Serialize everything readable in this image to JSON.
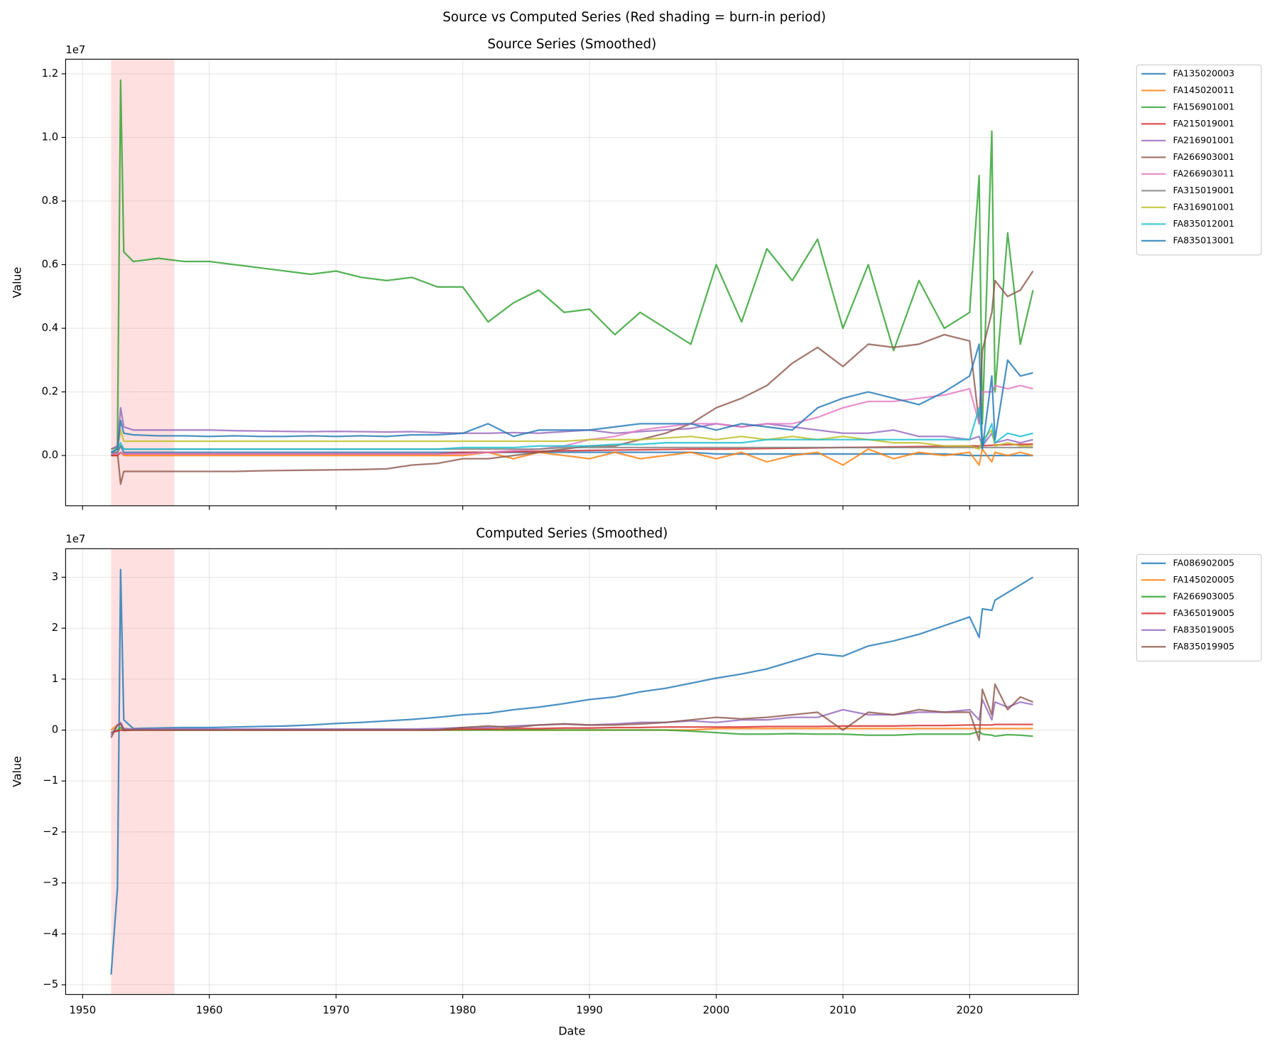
{
  "title": "Source vs Computed Series (Red shading = burn-in period)",
  "chart_data": [
    {
      "type": "line",
      "title": "Source Series (Smoothed)",
      "ylabel": "Value",
      "offset_label": "1e7",
      "xlim": [
        1948.66,
        2028.57
      ],
      "xticks": [
        1950,
        1960,
        1970,
        1980,
        1990,
        2000,
        2010,
        2020
      ],
      "xticklabels": false,
      "ylim": [
        -0.158,
        1.246
      ],
      "yticks": [
        {
          "value": 0,
          "label": "0.0"
        },
        0.2,
        0.4,
        0.6,
        0.8,
        {
          "value": 1,
          "label": "1.0"
        },
        1.2
      ],
      "grid": true,
      "shade": {
        "x": [
          1952.25,
          1957.25
        ],
        "color": "#ffcccc"
      },
      "x": [
        1952.25,
        1952.75,
        1953,
        1953.25,
        1954,
        1956,
        1958,
        1960,
        1962,
        1964,
        1966,
        1968,
        1970,
        1972,
        1974,
        1976,
        1978,
        1980,
        1982,
        1984,
        1986,
        1988,
        1990,
        1992,
        1994,
        1996,
        1998,
        2000,
        2002,
        2004,
        2006,
        2008,
        2010,
        2012,
        2014,
        2016,
        2018,
        2020,
        2020.75,
        2021,
        2021.75,
        2022,
        2023,
        2024,
        2025
      ],
      "series": [
        {
          "name": "FA135020003",
          "color": "#1f77b4",
          "values": [
            0.005,
            0.01,
            0.03,
            0.01,
            0.01,
            0.01,
            0.01,
            0.01,
            0.01,
            0.01,
            0.01,
            0.01,
            0.01,
            0.01,
            0.01,
            0.01,
            0.01,
            0.01,
            0.01,
            0.01,
            0.01,
            0.01,
            0.01,
            0.01,
            0.01,
            0.01,
            0.01,
            0.005,
            0.005,
            0.005,
            0.005,
            0.005,
            0.005,
            0.005,
            0.005,
            0.005,
            0.005,
            0,
            0,
            0,
            0,
            0,
            0,
            0,
            0
          ]
        },
        {
          "name": "FA145020011",
          "color": "#ff7f0e",
          "values": [
            0,
            0,
            0.01,
            0,
            0,
            0,
            0,
            0,
            0,
            0,
            0,
            0,
            0,
            0,
            0,
            0,
            0,
            0,
            0.01,
            -0.01,
            0.01,
            0,
            -0.01,
            0.01,
            -0.01,
            0,
            0.01,
            -0.01,
            0.01,
            -0.02,
            0,
            0.01,
            -0.03,
            0.02,
            -0.01,
            0.01,
            0,
            0.01,
            -0.03,
            0.02,
            -0.02,
            0.01,
            0,
            0.01,
            0
          ]
        },
        {
          "name": "FA156901001",
          "color": "#2ca02c",
          "values": [
            0.02,
            0.025,
            1.18,
            0.64,
            0.61,
            0.62,
            0.61,
            0.61,
            0.6,
            0.59,
            0.58,
            0.57,
            0.58,
            0.56,
            0.55,
            0.56,
            0.53,
            0.53,
            0.42,
            0.48,
            0.52,
            0.45,
            0.46,
            0.38,
            0.45,
            0.4,
            0.35,
            0.6,
            0.42,
            0.65,
            0.55,
            0.68,
            0.4,
            0.6,
            0.33,
            0.55,
            0.4,
            0.45,
            0.88,
            0.1,
            1.02,
            0.2,
            0.7,
            0.35,
            0.52
          ]
        },
        {
          "name": "FA215019001",
          "color": "#d62728",
          "values": [
            0,
            0,
            0.01,
            0.005,
            0.005,
            0.005,
            0.005,
            0.005,
            0.005,
            0.005,
            0.005,
            0.005,
            0.005,
            0.005,
            0.005,
            0.005,
            0.005,
            0.01,
            0.01,
            0.012,
            0.013,
            0.015,
            0.016,
            0.017,
            0.018,
            0.019,
            0.02,
            0.02,
            0.021,
            0.022,
            0.023,
            0.024,
            0.025,
            0.026,
            0.027,
            0.028,
            0.029,
            0.03,
            0.03,
            0.031,
            0.032,
            0.033,
            0.034,
            0.035,
            0.036
          ]
        },
        {
          "name": "FA216901001",
          "color": "#9467bd",
          "values": [
            0.02,
            0.03,
            0.15,
            0.09,
            0.08,
            0.08,
            0.08,
            0.08,
            0.078,
            0.077,
            0.076,
            0.075,
            0.076,
            0.075,
            0.074,
            0.075,
            0.072,
            0.07,
            0.07,
            0.072,
            0.07,
            0.075,
            0.08,
            0.07,
            0.075,
            0.08,
            0.085,
            0.1,
            0.09,
            0.1,
            0.09,
            0.08,
            0.07,
            0.07,
            0.08,
            0.06,
            0.06,
            0.05,
            0.06,
            0.03,
            0.07,
            0.04,
            0.05,
            0.04,
            0.05
          ]
        },
        {
          "name": "FA266903001",
          "color": "#8c564b",
          "values": [
            0,
            0.01,
            -0.09,
            -0.05,
            -0.05,
            -0.05,
            -0.05,
            -0.05,
            -0.05,
            -0.048,
            -0.047,
            -0.046,
            -0.045,
            -0.044,
            -0.042,
            -0.03,
            -0.025,
            -0.01,
            -0.01,
            0,
            0.01,
            0.02,
            0.03,
            0.03,
            0.05,
            0.07,
            0.1,
            0.15,
            0.18,
            0.22,
            0.29,
            0.34,
            0.28,
            0.35,
            0.34,
            0.35,
            0.38,
            0.36,
            0.1,
            0.33,
            0.45,
            0.55,
            0.5,
            0.52,
            0.58
          ]
        },
        {
          "name": "FA266903011",
          "color": "#e377c2",
          "values": [
            0.005,
            0.005,
            0.01,
            0.005,
            0.005,
            0.005,
            0.005,
            0.005,
            0.005,
            0.005,
            0.005,
            0.005,
            0.005,
            0.005,
            0.005,
            0.005,
            0.005,
            0.005,
            0.01,
            0.015,
            0.02,
            0.03,
            0.05,
            0.06,
            0.08,
            0.09,
            0.1,
            0.1,
            0.09,
            0.1,
            0.1,
            0.12,
            0.15,
            0.17,
            0.17,
            0.18,
            0.19,
            0.21,
            0.1,
            0.2,
            0.2,
            0.22,
            0.21,
            0.22,
            0.21
          ]
        },
        {
          "name": "FA315019001",
          "color": "#7f7f7f",
          "values": [
            0.01,
            0.01,
            0.03,
            0.02,
            0.02,
            0.02,
            0.02,
            0.02,
            0.02,
            0.02,
            0.02,
            0.02,
            0.02,
            0.02,
            0.02,
            0.02,
            0.02,
            0.02,
            0.02,
            0.02,
            0.02,
            0.025,
            0.025,
            0.025,
            0.025,
            0.025,
            0.025,
            0.025,
            0.025,
            0.025,
            0.025,
            0.025,
            0.025,
            0.025,
            0.025,
            0.025,
            0.025,
            0.025,
            0.025,
            0.025,
            0.025,
            0.025,
            0.025,
            0.025,
            0.025
          ]
        },
        {
          "name": "FA316901001",
          "color": "#bcbd22",
          "values": [
            0.01,
            0.02,
            0.08,
            0.045,
            0.045,
            0.045,
            0.045,
            0.045,
            0.045,
            0.045,
            0.045,
            0.045,
            0.045,
            0.045,
            0.045,
            0.045,
            0.045,
            0.045,
            0.045,
            0.045,
            0.045,
            0.045,
            0.05,
            0.05,
            0.05,
            0.055,
            0.06,
            0.05,
            0.06,
            0.05,
            0.06,
            0.05,
            0.06,
            0.05,
            0.04,
            0.04,
            0.03,
            0.03,
            0.02,
            0.05,
            0.08,
            0.03,
            0.04,
            0.03,
            0.03
          ]
        },
        {
          "name": "FA835012001",
          "color": "#17becf",
          "values": [
            0.01,
            0.02,
            0.04,
            0.02,
            0.02,
            0.02,
            0.02,
            0.02,
            0.02,
            0.02,
            0.02,
            0.02,
            0.02,
            0.02,
            0.02,
            0.02,
            0.02,
            0.025,
            0.025,
            0.025,
            0.03,
            0.03,
            0.03,
            0.035,
            0.035,
            0.04,
            0.04,
            0.04,
            0.04,
            0.05,
            0.05,
            0.05,
            0.05,
            0.05,
            0.05,
            0.05,
            0.05,
            0.05,
            0.15,
            0.03,
            0.1,
            0.04,
            0.07,
            0.06,
            0.07
          ]
        },
        {
          "name": "FA835013001",
          "color": "#1f77b4",
          "values": [
            0.01,
            0.02,
            0.11,
            0.07,
            0.065,
            0.062,
            0.062,
            0.06,
            0.062,
            0.06,
            0.06,
            0.062,
            0.06,
            0.062,
            0.06,
            0.065,
            0.065,
            0.07,
            0.1,
            0.06,
            0.08,
            0.08,
            0.08,
            0.09,
            0.1,
            0.1,
            0.1,
            0.08,
            0.1,
            0.09,
            0.08,
            0.15,
            0.18,
            0.2,
            0.18,
            0.16,
            0.2,
            0.25,
            0.35,
            0.02,
            0.25,
            0.05,
            0.3,
            0.25,
            0.26
          ]
        }
      ]
    },
    {
      "type": "line",
      "title": "Computed Series (Smoothed)",
      "xlabel": "Date",
      "ylabel": "Value",
      "offset_label": "1e7",
      "xlim": [
        1948.66,
        2028.57
      ],
      "xticks": [
        1950,
        1960,
        1970,
        1980,
        1990,
        2000,
        2010,
        2020
      ],
      "xticklabels": true,
      "ylim": [
        -5.19,
        3.56
      ],
      "yticks": [
        {
          "value": -5,
          "label": "−5"
        },
        {
          "value": -4,
          "label": "−4"
        },
        {
          "value": -3,
          "label": "−3"
        },
        {
          "value": -2,
          "label": "−2"
        },
        {
          "value": -1,
          "label": "−1"
        },
        0,
        1,
        2,
        3
      ],
      "grid": true,
      "shade": {
        "x": [
          1952.25,
          1957.25
        ],
        "color": "#ffcccc"
      },
      "x": [
        1952.25,
        1952.75,
        1953,
        1953.25,
        1954,
        1956,
        1958,
        1960,
        1962,
        1964,
        1966,
        1968,
        1970,
        1972,
        1974,
        1976,
        1978,
        1980,
        1982,
        1984,
        1986,
        1988,
        1990,
        1992,
        1994,
        1996,
        1998,
        2000,
        2002,
        2004,
        2006,
        2008,
        2010,
        2012,
        2014,
        2016,
        2018,
        2020,
        2020.75,
        2021,
        2021.75,
        2022,
        2023,
        2024,
        2025
      ],
      "series": [
        {
          "name": "FA086902005",
          "color": "#1f77b4",
          "values": [
            -4.8,
            -3.1,
            3.15,
            0.2,
            0.03,
            0.04,
            0.05,
            0.05,
            0.06,
            0.07,
            0.08,
            0.1,
            0.13,
            0.15,
            0.18,
            0.21,
            0.25,
            0.3,
            0.33,
            0.4,
            0.45,
            0.52,
            0.6,
            0.65,
            0.75,
            0.82,
            0.92,
            1.02,
            1.1,
            1.2,
            1.35,
            1.5,
            1.45,
            1.65,
            1.75,
            1.88,
            2.05,
            2.22,
            1.82,
            2.38,
            2.35,
            2.55,
            2.7,
            2.85,
            3.0
          ]
        },
        {
          "name": "FA145020005",
          "color": "#ff7f0e",
          "values": [
            0,
            0.1,
            0.12,
            0.02,
            0,
            0,
            0,
            0,
            0,
            0,
            0,
            0,
            0,
            0,
            0,
            0,
            0,
            0,
            0,
            0,
            0,
            0,
            0,
            0,
            0,
            0,
            0,
            0.03,
            0.03,
            0.03,
            0.03,
            0.03,
            0.03,
            0.03,
            0.03,
            0.03,
            0.03,
            0.03,
            0.03,
            0.03,
            0.03,
            0.03,
            0.03,
            0.03,
            0.03
          ]
        },
        {
          "name": "FA266903005",
          "color": "#2ca02c",
          "values": [
            -0.05,
            0,
            0.05,
            0,
            0,
            0,
            0,
            0,
            0,
            0,
            0,
            0,
            0,
            0,
            0,
            0,
            0,
            0,
            0,
            0,
            0,
            0,
            0,
            0,
            0,
            0,
            -0.02,
            -0.05,
            -0.08,
            -0.08,
            -0.07,
            -0.08,
            -0.08,
            -0.1,
            -0.1,
            -0.08,
            -0.08,
            -0.08,
            -0.03,
            -0.08,
            -0.1,
            -0.12,
            -0.09,
            -0.1,
            -0.12
          ]
        },
        {
          "name": "FA365019005",
          "color": "#d62728",
          "values": [
            -0.05,
            -0.02,
            0,
            -0.01,
            0,
            0,
            0,
            0,
            0,
            0,
            0,
            0,
            0,
            0,
            0,
            0,
            0,
            0.02,
            0.02,
            0.03,
            0.03,
            0.04,
            0.04,
            0.05,
            0.05,
            0.06,
            0.06,
            0.06,
            0.06,
            0.07,
            0.07,
            0.07,
            0.08,
            0.08,
            0.08,
            0.09,
            0.09,
            0.1,
            0.1,
            0.1,
            0.1,
            0.11,
            0.11,
            0.11,
            0.11
          ]
        },
        {
          "name": "FA835019005",
          "color": "#9467bd",
          "values": [
            -0.1,
            0.1,
            0.15,
            0.03,
            0.02,
            0.02,
            0.02,
            0.02,
            0.02,
            0.02,
            0.02,
            0.02,
            0.02,
            0.02,
            0.02,
            0.02,
            0.03,
            0.05,
            0.05,
            0.08,
            0.1,
            0.12,
            0.1,
            0.12,
            0.15,
            0.15,
            0.18,
            0.15,
            0.2,
            0.2,
            0.25,
            0.25,
            0.4,
            0.3,
            0.3,
            0.35,
            0.35,
            0.4,
            0.2,
            0.6,
            0.2,
            0.55,
            0.45,
            0.55,
            0.5
          ]
        },
        {
          "name": "FA835019905",
          "color": "#8c564b",
          "values": [
            -0.15,
            0.1,
            0.12,
            0,
            0,
            0,
            0,
            0,
            0,
            0,
            0,
            0,
            0,
            0,
            0,
            0,
            0,
            0.05,
            0.08,
            0.05,
            0.1,
            0.12,
            0.1,
            0.1,
            0.12,
            0.15,
            0.2,
            0.25,
            0.22,
            0.25,
            0.3,
            0.35,
            0,
            0.35,
            0.3,
            0.4,
            0.35,
            0.35,
            -0.2,
            0.8,
            0.3,
            0.9,
            0.4,
            0.65,
            0.55
          ]
        }
      ]
    }
  ]
}
